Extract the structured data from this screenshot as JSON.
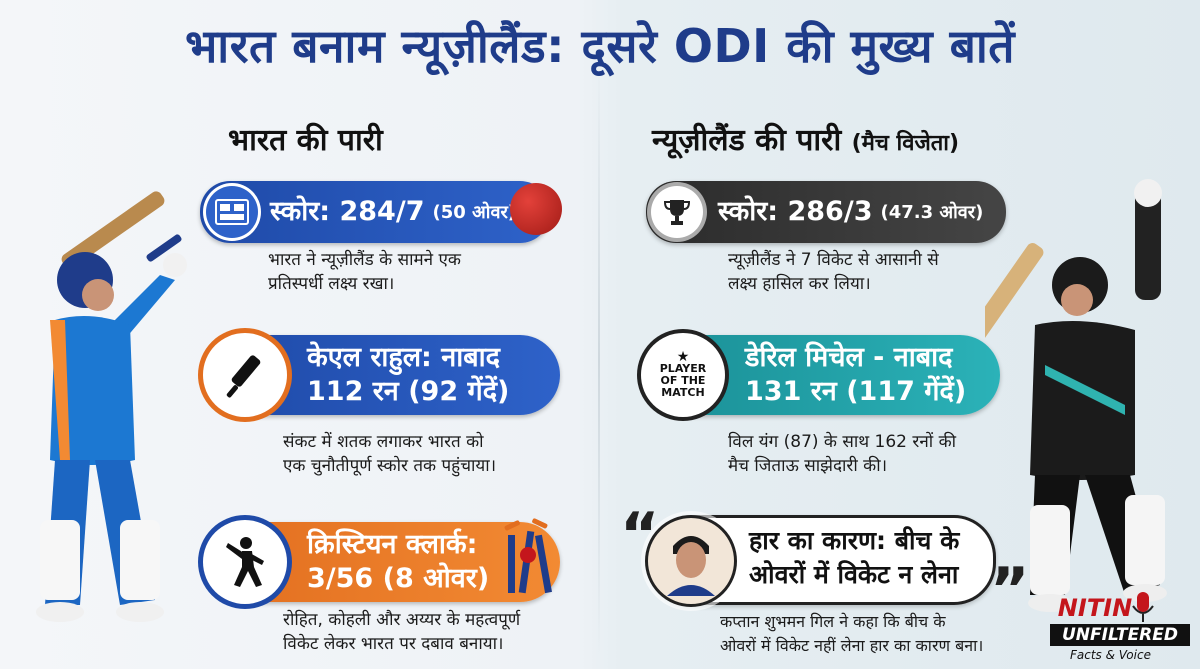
{
  "title": "भारत बनाम न्यूज़ीलैंड: दूसरे ODI की मुख्य बातें",
  "india": {
    "heading": "भारत की पारी",
    "score": {
      "label": "स्कोर: 284/7",
      "overs": "(50 ओवर)",
      "desc_line1": "भारत ने न्यूज़ीलैंड के सामने एक",
      "desc_line2": "प्रतिस्पर्धी लक्ष्य रखा।",
      "icon": "scoreboard-icon"
    },
    "batsman": {
      "line1": "केएल राहुल: नाबाद",
      "line2": "112 रन (92 गेंदें)",
      "desc_line1": "संकट में शतक लगाकर भारत को",
      "desc_line2": "एक चुनौतीपूर्ण स्कोर तक पहुंचाया।",
      "icon": "cricket-bat-icon"
    },
    "bowler": {
      "line1": "क्रिस्टियन क्लार्क:",
      "line2": "3/56 (8 ओवर)",
      "desc_line1": "रोहित, कोहली और अय्यर के महत्वपूर्ण",
      "desc_line2": "विकेट लेकर भारत पर दबाव बनाया।",
      "icon": "bowler-icon"
    }
  },
  "nz": {
    "heading": "न्यूज़ीलैंड की पारी",
    "heading_suffix": "(मैच विजेता)",
    "score": {
      "label": "स्कोर: 286/3",
      "overs": "(47.3 ओवर)",
      "desc_line1": "न्यूज़ीलैंड ने 7 विकेट से आसानी से",
      "desc_line2": "लक्ष्य हासिल कर लिया।",
      "icon": "trophy-icon"
    },
    "batsman": {
      "badge_line1": "PLAYER",
      "badge_line2": "OF THE",
      "badge_line3": "MATCH",
      "line1": "डेरिल मिचेल - नाबाद",
      "line2": "131 रन (117 गेंदें)",
      "desc_line1": "विल यंग (87) के साथ 162 रनों की",
      "desc_line2": "मैच जिताऊ साझेदारी की।"
    },
    "reason": {
      "line1": "हार का कारण: बीच के",
      "line2": "ओवरों में विकेट न लेना",
      "desc_line1": "कप्तान शुभमन गिल ने कहा कि बीच के",
      "desc_line2": "ओवरों में विकेट नहीं लेना हार का कारण बना।"
    }
  },
  "brand": {
    "line1": "NITIN",
    "line2": "UNFILTERED",
    "line3": "Facts & Voice"
  },
  "colors": {
    "blue": "#1f4aa8",
    "dark": "#2b2b2b",
    "orange": "#e26e1f",
    "teal": "#1a8f96",
    "title": "#1f3c8a"
  }
}
